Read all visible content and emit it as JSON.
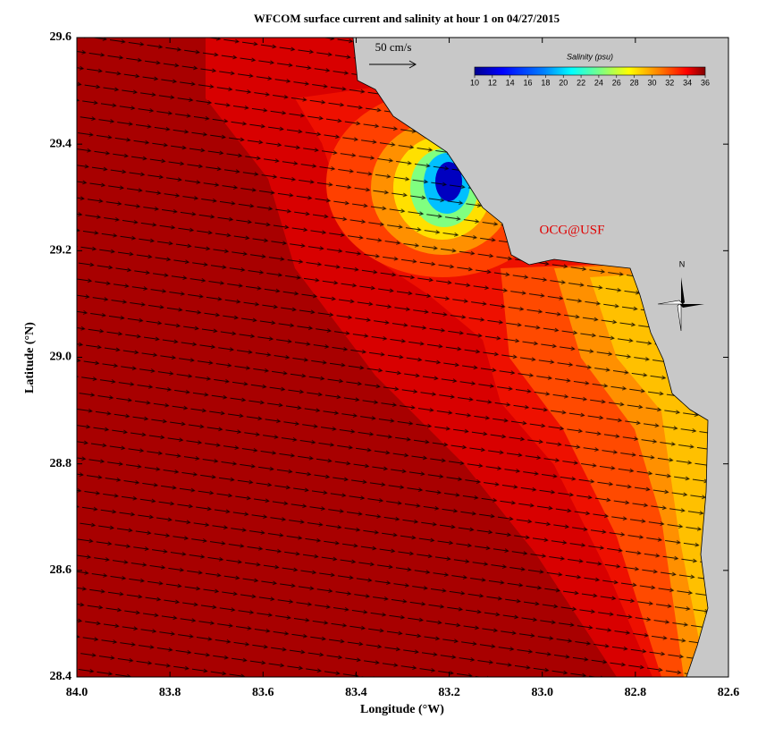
{
  "title": "WFCOM surface current and salinity at hour 1 on 04/27/2015",
  "x_axis": {
    "label": "Longitude (°W)",
    "lim": [
      84,
      82.6
    ],
    "ticks": [
      {
        "value": 84,
        "label": "84.0"
      },
      83.8,
      83.6,
      83.4,
      83.2,
      {
        "value": 83,
        "label": "83.0"
      },
      82.8,
      82.6
    ]
  },
  "y_axis": {
    "label": "Latitude (°N)",
    "lim": [
      28.4,
      29.6
    ],
    "ticks": [
      28.4,
      28.6,
      28.8,
      {
        "value": 29,
        "label": "29.0"
      },
      29.2,
      29.4,
      29.6
    ]
  },
  "colorbar": {
    "title": "Salinity (psu)",
    "lim": [
      10,
      36
    ],
    "ticks": [
      10,
      12,
      14,
      16,
      18,
      20,
      22,
      24,
      26,
      28,
      30,
      32,
      34,
      36
    ]
  },
  "scale_label": "50 cm/s",
  "credit": "OCG@USF",
  "compass_label": "N"
}
